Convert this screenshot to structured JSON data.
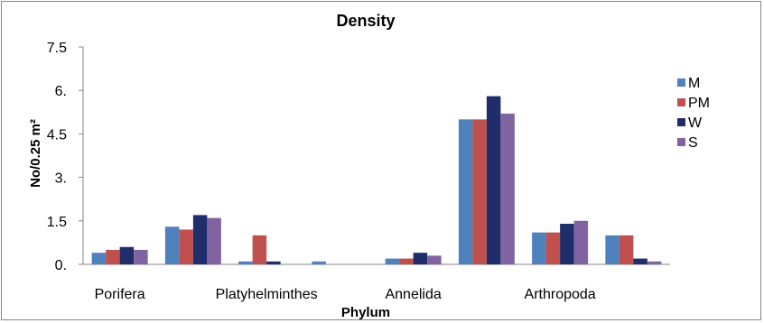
{
  "chart_data": {
    "type": "bar",
    "title": "Density",
    "xlabel": "Phylum",
    "ylabel": "No/0.25 m²",
    "categories": [
      "Porifera",
      "",
      "Platyhelminthes",
      "",
      "Annelida",
      "",
      "Arthropoda",
      ""
    ],
    "y_tick_labels": [
      "0.",
      "1.5",
      "3.",
      "4.5",
      "6.",
      "7.5"
    ],
    "y_ticks": [
      0,
      1.5,
      3,
      4.5,
      6,
      7.5
    ],
    "ylim": [
      0,
      7.5
    ],
    "grid": false,
    "legend": "right",
    "series": [
      {
        "name": "M",
        "color": "#4F81BD",
        "values": [
          0.4,
          1.3,
          0.1,
          0.1,
          0.2,
          5.0,
          1.1,
          1.0
        ]
      },
      {
        "name": "PM",
        "color": "#C0504D",
        "values": [
          0.5,
          1.2,
          1.0,
          0.0,
          0.2,
          5.0,
          1.1,
          1.0
        ]
      },
      {
        "name": "W",
        "color": "#1F2D6B",
        "values": [
          0.6,
          1.7,
          0.1,
          0.0,
          0.4,
          5.8,
          1.4,
          0.2
        ]
      },
      {
        "name": "S",
        "color": "#8064A2",
        "values": [
          0.5,
          1.6,
          0.0,
          0.0,
          0.3,
          5.2,
          1.5,
          0.1
        ]
      }
    ]
  }
}
